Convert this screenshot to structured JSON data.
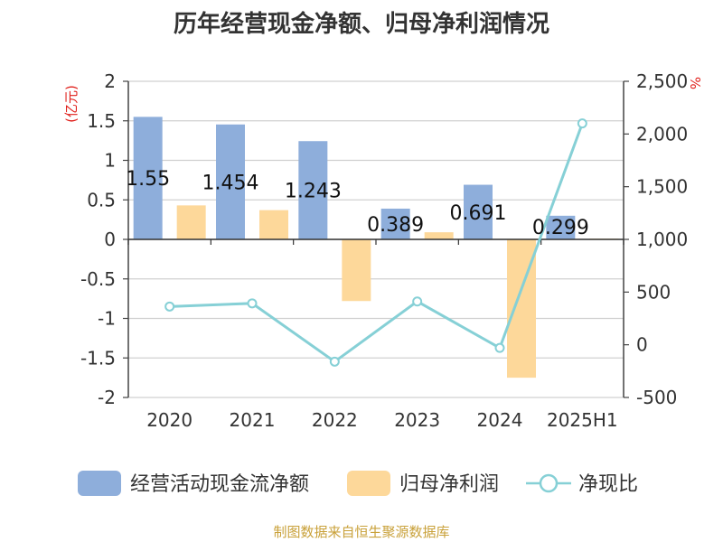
{
  "title": "历年经营现金净额、归母净利润情况",
  "source": "制图数据来自恒生聚源数据库",
  "chart_data": {
    "type": "bar",
    "categories": [
      "2020",
      "2021",
      "2022",
      "2023",
      "2024",
      "2025H1"
    ],
    "series": [
      {
        "name": "经营活动现金流净额",
        "type": "bar",
        "axis": "left",
        "color": "#8eaedb",
        "values": [
          1.55,
          1.454,
          1.243,
          0.389,
          0.691,
          0.299
        ]
      },
      {
        "name": "归母净利润",
        "type": "bar",
        "axis": "left",
        "color": "#fdd89a",
        "values": [
          0.43,
          0.37,
          -0.78,
          0.09,
          -1.75,
          0.01
        ]
      },
      {
        "name": "净现比",
        "type": "line",
        "axis": "right",
        "color": "#86d0d6",
        "values": [
          363,
          393,
          -160,
          411,
          -30,
          2100
        ]
      }
    ],
    "data_labels": [
      "1.55",
      "1.454",
      "1.243",
      "0.389",
      "0.691",
      "0.299"
    ],
    "ylabel": "(亿元)",
    "y2label": "%",
    "ylim": [
      -2,
      2
    ],
    "yticks": [
      "2",
      "1.5",
      "1",
      "0.5",
      "0",
      "-0.5",
      "-1",
      "-1.5",
      "-2"
    ],
    "y2lim": [
      -500,
      2500
    ],
    "y2ticks": [
      "2,500",
      "2,000",
      "1,500",
      "1,000",
      "500",
      "0",
      "-500"
    ],
    "grid": true,
    "legend_position": "bottom"
  }
}
